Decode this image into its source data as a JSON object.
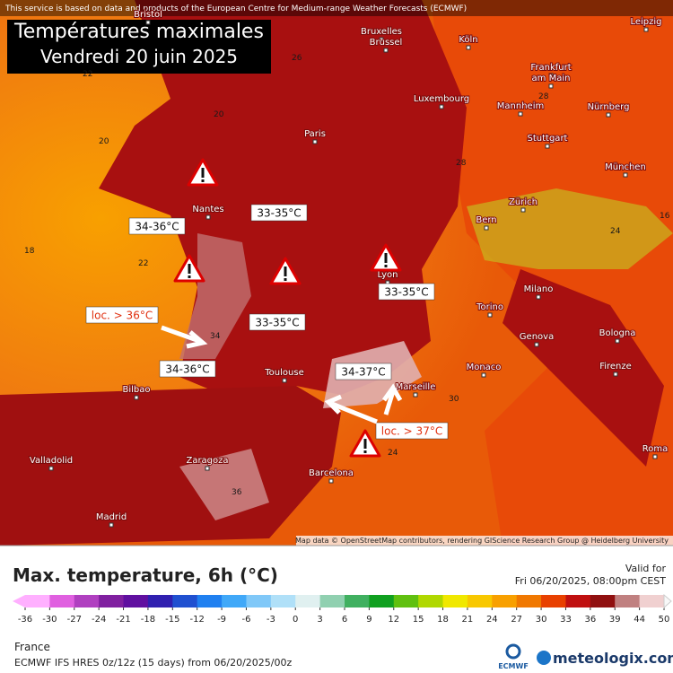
{
  "header": {
    "notice": "This service is based on data and products of the European Centre for Medium-range Weather Forecasts (ECMWF)",
    "title": "Températures maximales",
    "subtitle": "Vendredi 20 juin 2025"
  },
  "map": {
    "cities": [
      "Bristol",
      "Bruxelles",
      "Brussel",
      "Köln",
      "Leipzig",
      "Frankfurt",
      "am Main",
      "Luxembourg",
      "Mannheim",
      "Nürnberg",
      "Paris",
      "Stuttgart",
      "München",
      "Nantes",
      "Zürich",
      "Bern",
      "Lyon",
      "Torino",
      "Milano",
      "Genova",
      "Bologna",
      "Monaco",
      "Firenze",
      "Marseille",
      "Toulouse",
      "Bilbao",
      "Valladolid",
      "Zaragoza",
      "Barcelona",
      "Madrid",
      "Roma"
    ],
    "annotations": [
      "34-36°C",
      "33-35°C",
      "loc. > 36°C",
      "33-35°C",
      "33-35°C",
      "34-36°C",
      "34-37°C",
      "loc. > 37°C"
    ],
    "isotherm_labels": [
      22,
      20,
      18,
      22,
      26,
      28,
      20,
      34,
      24,
      30,
      36,
      28,
      24,
      16
    ],
    "credit": "Map data © OpenStreetMap contributors, rendering GIScience Research Group @ Heidelberg University"
  },
  "legend": {
    "title": "Max. temperature, 6h (°C)",
    "valid_label": "Valid for",
    "valid_time": "Fri 06/20/2025, 08:00pm CEST",
    "ticks": [
      -36,
      -30,
      -27,
      -24,
      -21,
      -18,
      -15,
      -12,
      -9,
      -6,
      -3,
      0,
      3,
      6,
      9,
      12,
      15,
      18,
      21,
      24,
      27,
      30,
      33,
      36,
      39,
      44,
      50
    ],
    "colors": [
      "#ffb0ff",
      "#e060e0",
      "#b040c0",
      "#8020a0",
      "#6010a0",
      "#3020b0",
      "#2050d0",
      "#2080f0",
      "#40a8f8",
      "#80c8f8",
      "#b0e0f8",
      "#e0f0f0",
      "#90d0b0",
      "#40b060",
      "#10a020",
      "#60c010",
      "#b0d800",
      "#f0e800",
      "#f8c800",
      "#f8a000",
      "#f07800",
      "#e84000",
      "#c01010",
      "#901010",
      "#c08080",
      "#f0d0d0",
      "#f8f8f8"
    ]
  },
  "footer": {
    "region": "France",
    "model": "ECMWF IFS HRES 0z/12z (15 days) from 06/20/2025/00z",
    "ecmwf_logo": "ECMWF",
    "brand": "meteologix.com"
  }
}
